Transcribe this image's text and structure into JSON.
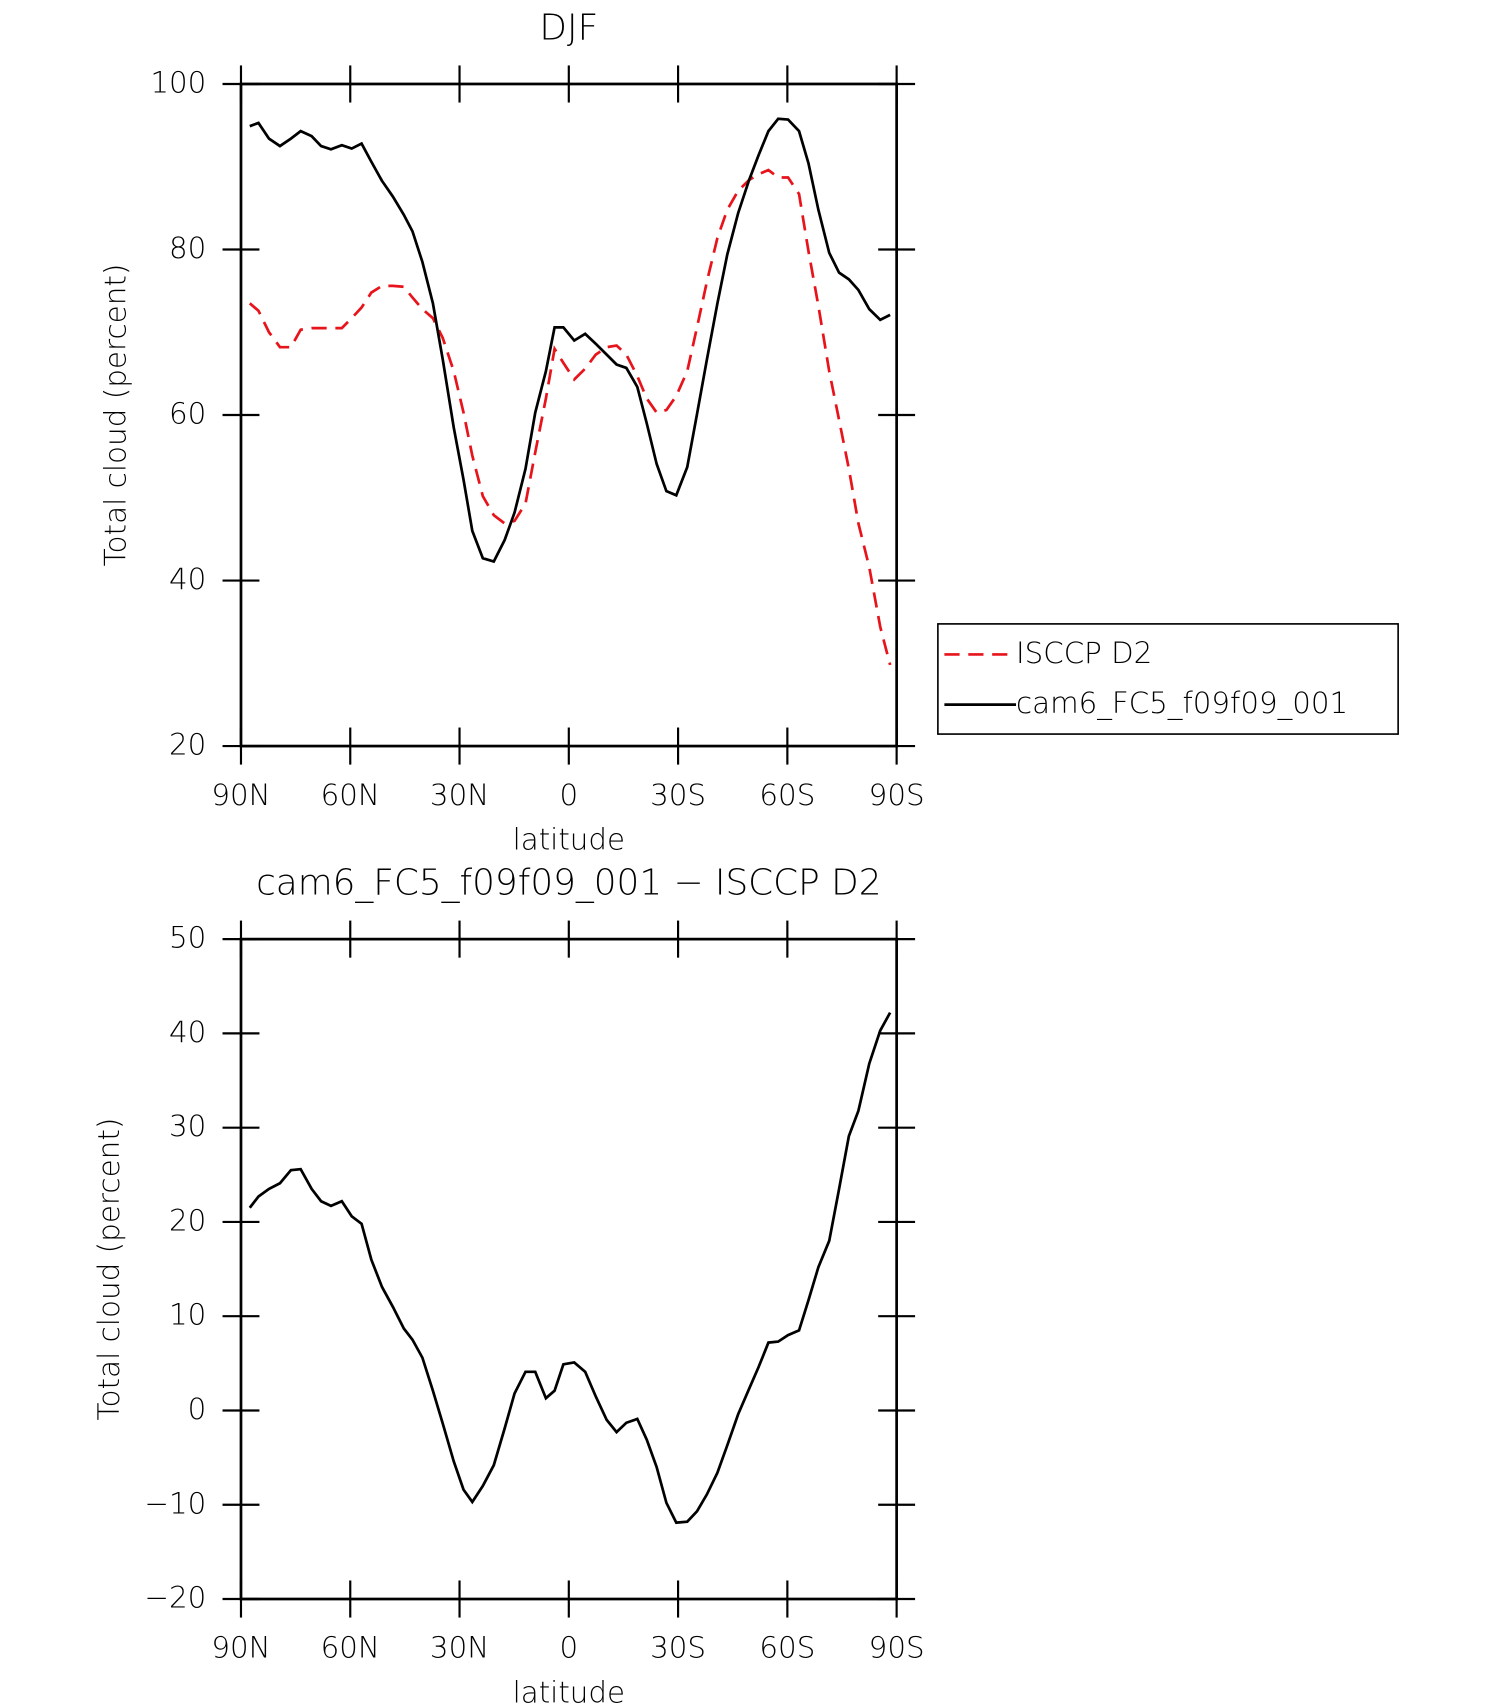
{
  "chart_data": [
    {
      "type": "line",
      "title": "DJF",
      "xlabel": "latitude",
      "ylabel": "Total cloud (percent)",
      "x": [
        87.6,
        85.2,
        82.3,
        79.3,
        76.3,
        73.6,
        70.6,
        68.0,
        65.3,
        62.3,
        59.6,
        56.9,
        54.2,
        51.3,
        48.3,
        45.3,
        42.9,
        40.2,
        37.3,
        34.6,
        31.6,
        28.9,
        26.5,
        23.6,
        20.6,
        17.6,
        14.9,
        11.9,
        9.2,
        6.3,
        3.9,
        1.5,
        -1.5,
        -4.5,
        -7.4,
        -10.4,
        -13.1,
        -15.8,
        -18.8,
        -21.4,
        -24.1,
        -26.8,
        -29.5,
        -32.5,
        -35.2,
        -37.9,
        -40.8,
        -43.5,
        -46.5,
        -49.5,
        -52.1,
        -54.8,
        -57.5,
        -60.2,
        -63.2,
        -65.8,
        -68.5,
        -71.5,
        -74.2,
        -76.9,
        -79.5,
        -82.5,
        -85.5,
        -88.2
      ],
      "xlim": [
        90,
        -90
      ],
      "xticks": [
        {
          "value": 90,
          "label": "90N"
        },
        {
          "value": 60,
          "label": "60N"
        },
        {
          "value": 30,
          "label": "30N"
        },
        0,
        {
          "value": -30,
          "label": "30S"
        },
        {
          "value": -60,
          "label": "60S"
        },
        {
          "value": -90,
          "label": "90S"
        }
      ],
      "ylim": [
        20,
        100
      ],
      "yticks": [
        20,
        40,
        60,
        80,
        100
      ],
      "legend": "outside-right",
      "series": [
        {
          "name": "ISCCP D2",
          "color": "#e8141b",
          "style": "dashed",
          "values": [
            73.5,
            72.6,
            70.0,
            68.2,
            68.2,
            70.3,
            70.5,
            70.5,
            70.5,
            70.5,
            71.7,
            73.0,
            74.8,
            75.6,
            75.6,
            75.5,
            74.2,
            72.8,
            71.7,
            69.3,
            65.3,
            60.3,
            55.1,
            50.2,
            47.9,
            46.9,
            47.2,
            49.3,
            55.5,
            62.0,
            68.0,
            66.3,
            64.3,
            65.6,
            67.3,
            68.2,
            68.4,
            67.3,
            64.7,
            62.0,
            60.3,
            60.6,
            62.3,
            65.3,
            70.6,
            76.1,
            81.4,
            84.8,
            87.1,
            88.4,
            89.1,
            89.6,
            88.7,
            88.7,
            86.7,
            79.8,
            73.2,
            65.3,
            59.4,
            53.5,
            46.9,
            41.6,
            34.4,
            29.8
          ]
        },
        {
          "name": "cam6_FC5_f09f09_001",
          "color": "#000000",
          "style": "solid",
          "values": [
            94.9,
            95.3,
            93.4,
            92.5,
            93.4,
            94.3,
            93.7,
            92.5,
            92.1,
            92.6,
            92.2,
            92.8,
            90.6,
            88.3,
            86.4,
            84.2,
            82.2,
            78.5,
            73.5,
            66.7,
            58.5,
            52.2,
            46.0,
            42.7,
            42.3,
            44.9,
            48.2,
            53.5,
            60.3,
            65.3,
            70.6,
            70.6,
            69.0,
            69.8,
            68.6,
            67.3,
            66.1,
            65.7,
            63.4,
            59.0,
            54.1,
            50.8,
            50.3,
            53.7,
            60.1,
            66.7,
            73.5,
            79.4,
            84.4,
            88.4,
            91.4,
            94.3,
            95.8,
            95.7,
            94.3,
            90.4,
            84.8,
            79.6,
            77.2,
            76.4,
            75.1,
            72.8,
            71.5,
            72.1
          ]
        }
      ]
    },
    {
      "type": "line",
      "title": "cam6_FC5_f09f09_001 − ISCCP D2",
      "xlabel": "latitude",
      "ylabel": "Total cloud (percent)",
      "x": [
        87.6,
        85.2,
        82.3,
        79.3,
        76.3,
        73.6,
        70.6,
        68.0,
        65.3,
        62.3,
        59.6,
        56.9,
        54.2,
        51.3,
        48.3,
        45.3,
        42.9,
        40.2,
        37.3,
        34.6,
        31.6,
        28.9,
        26.5,
        23.6,
        20.6,
        17.6,
        14.9,
        11.9,
        9.2,
        6.3,
        3.9,
        1.5,
        -1.5,
        -4.5,
        -7.4,
        -10.4,
        -13.1,
        -15.8,
        -18.8,
        -21.4,
        -24.1,
        -26.8,
        -29.5,
        -32.5,
        -35.2,
        -37.9,
        -40.8,
        -43.5,
        -46.5,
        -49.5,
        -52.1,
        -54.8,
        -57.5,
        -60.2,
        -63.2,
        -65.8,
        -68.5,
        -71.5,
        -74.2,
        -76.9,
        -79.5,
        -82.5,
        -85.5,
        -88.2
      ],
      "xlim": [
        90,
        -90
      ],
      "xticks": [
        {
          "value": 90,
          "label": "90N"
        },
        {
          "value": 60,
          "label": "60N"
        },
        {
          "value": 30,
          "label": "30N"
        },
        0,
        {
          "value": -30,
          "label": "30S"
        },
        {
          "value": -60,
          "label": "60S"
        },
        {
          "value": -90,
          "label": "90S"
        }
      ],
      "ylim": [
        -20,
        50
      ],
      "yticks": [
        {
          "value": -20,
          "label": "−20"
        },
        {
          "value": -10,
          "label": "−10"
        },
        0,
        10,
        20,
        30,
        40,
        50
      ],
      "series": [
        {
          "color": "#000000",
          "style": "solid",
          "values": [
            21.5,
            22.7,
            23.5,
            24.1,
            25.5,
            25.6,
            23.5,
            22.2,
            21.7,
            22.2,
            20.6,
            19.8,
            16.0,
            13.1,
            11.0,
            8.7,
            7.5,
            5.6,
            2.1,
            -1.4,
            -5.4,
            -8.4,
            -9.7,
            -8.0,
            -5.8,
            -1.9,
            1.8,
            4.1,
            4.1,
            1.3,
            2.1,
            4.9,
            5.1,
            4.1,
            1.5,
            -1.0,
            -2.3,
            -1.3,
            -0.9,
            -3.1,
            -6.0,
            -9.8,
            -11.9,
            -11.8,
            -10.7,
            -8.9,
            -6.6,
            -3.7,
            -0.4,
            2.3,
            4.6,
            7.2,
            7.3,
            8.0,
            8.5,
            11.7,
            15.2,
            18.0,
            23.5,
            29.1,
            31.8,
            36.8,
            40.3,
            42.2
          ]
        }
      ]
    }
  ]
}
